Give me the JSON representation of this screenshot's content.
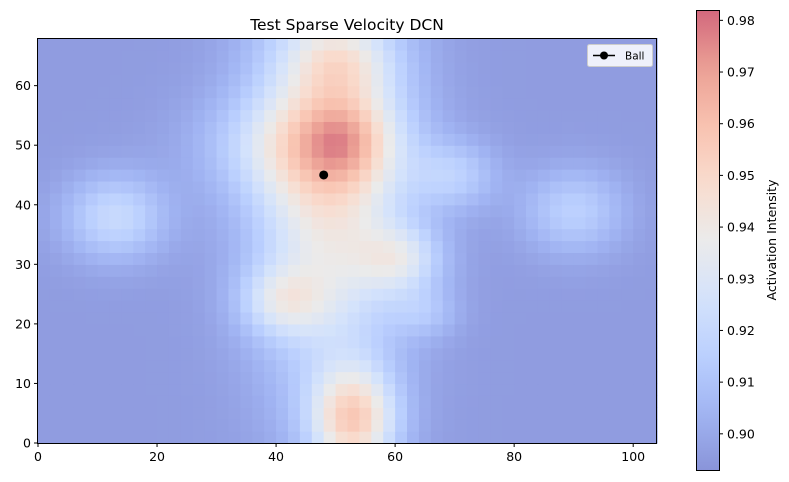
{
  "chart_data": {
    "type": "heatmap",
    "title": "Test Sparse Velocity DCN",
    "xlim": [
      0,
      104
    ],
    "ylim": [
      0,
      68
    ],
    "x_ticks": [
      0,
      20,
      40,
      60,
      80,
      100
    ],
    "y_ticks": [
      0,
      10,
      20,
      30,
      40,
      50,
      60
    ],
    "grid": false,
    "colormap": "coolwarm",
    "alpha": 0.6,
    "colorbar": {
      "label": "Activation Intensity",
      "range": [
        0.893,
        0.982
      ],
      "ticks": [
        0.9,
        0.91,
        0.92,
        0.93,
        0.94,
        0.95,
        0.96,
        0.97,
        0.98
      ],
      "tick_labels": [
        "0.90",
        "0.91",
        "0.92",
        "0.93",
        "0.94",
        "0.95",
        "0.96",
        "0.97",
        "0.98"
      ]
    },
    "field": {
      "grid_size": [
        52,
        34
      ],
      "base_value": 0.896,
      "components": [
        {
          "x": 49,
          "y": 46,
          "sx": 9,
          "sy": 24,
          "amp": 0.048
        },
        {
          "x": 44,
          "y": 50,
          "sx": 11,
          "sy": 6,
          "amp": 0.022
        },
        {
          "x": 52,
          "y": 51,
          "sx": 5,
          "sy": 5,
          "amp": 0.018
        },
        {
          "x": 51,
          "y": 64,
          "sx": 6,
          "sy": 4,
          "amp": 0.018
        },
        {
          "x": 61,
          "y": 31,
          "sx": 5,
          "sy": 4,
          "amp": 0.026
        },
        {
          "x": 41,
          "y": 24,
          "sx": 5,
          "sy": 4,
          "amp": 0.024
        },
        {
          "x": 53,
          "y": 4,
          "sx": 5,
          "sy": 6,
          "amp": 0.052
        },
        {
          "x": 13,
          "y": 38,
          "sx": 6,
          "sy": 5,
          "amp": 0.025
        },
        {
          "x": 90,
          "y": 39,
          "sx": 6,
          "sy": 5,
          "amp": 0.02
        },
        {
          "x": 70,
          "y": 45,
          "sx": 5,
          "sy": 4,
          "amp": 0.018
        },
        {
          "x": 65,
          "y": 22,
          "sx": 4,
          "sy": 3,
          "amp": 0.012
        }
      ]
    },
    "ball": {
      "x": 48,
      "y": 45,
      "color": "#000000"
    },
    "legend": {
      "placement": "upper-right",
      "entries": [
        "Ball"
      ]
    }
  }
}
